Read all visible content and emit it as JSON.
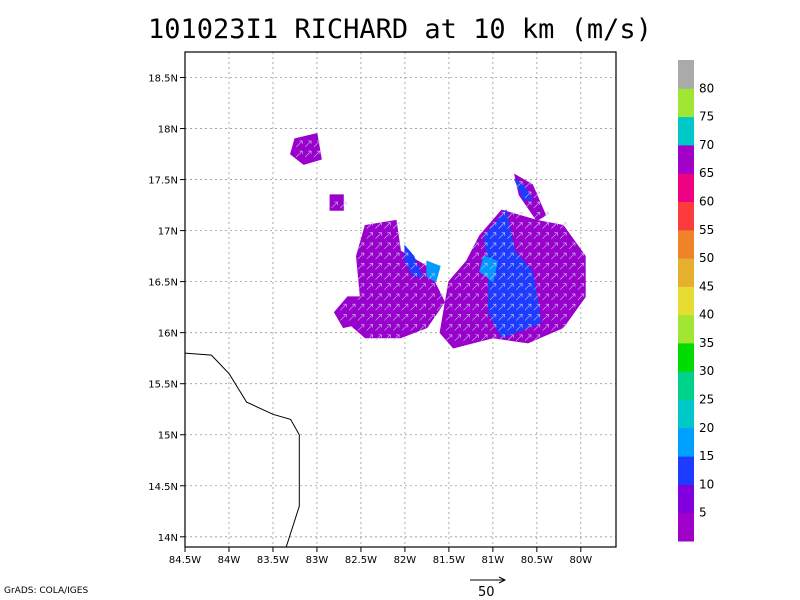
{
  "title": "101023I1 RICHARD at 10 km (m/s)",
  "footer": "GrADS: COLA/IGES",
  "vector_reference": {
    "label": "50"
  },
  "map": {
    "lon_range": [
      -84.5,
      -79.6
    ],
    "lat_range": [
      13.9,
      18.75
    ],
    "lon_ticks": [
      "84.5W",
      "84W",
      "83.5W",
      "83W",
      "82.5W",
      "82W",
      "81.5W",
      "81W",
      "80.5W",
      "80W"
    ],
    "lat_ticks": [
      "18.5N",
      "18N",
      "17.5N",
      "17N",
      "16.5N",
      "16N",
      "15.5N",
      "15N",
      "14.5N",
      "14N"
    ],
    "grid": true,
    "coastline": [
      [
        -84.5,
        15.8
      ],
      [
        -84.2,
        15.78
      ],
      [
        -84.0,
        15.6
      ],
      [
        -83.8,
        15.32
      ],
      [
        -83.5,
        15.2
      ],
      [
        -83.3,
        15.15
      ],
      [
        -83.2,
        15.0
      ],
      [
        -83.2,
        14.3
      ],
      [
        -83.35,
        13.9
      ]
    ],
    "wind_regions": [
      {
        "name": "west-cluster",
        "color": "#9900cc",
        "polygon": [
          [
            -82.45,
            17.05
          ],
          [
            -82.1,
            17.1
          ],
          [
            -82.05,
            16.8
          ],
          [
            -81.75,
            16.65
          ],
          [
            -81.55,
            16.3
          ],
          [
            -81.75,
            16.05
          ],
          [
            -82.05,
            15.95
          ],
          [
            -82.45,
            15.95
          ],
          [
            -82.65,
            16.1
          ],
          [
            -82.5,
            16.3
          ],
          [
            -82.55,
            16.75
          ]
        ]
      },
      {
        "name": "east-cluster",
        "color": "#9900cc",
        "polygon": [
          [
            -81.15,
            16.95
          ],
          [
            -80.9,
            17.2
          ],
          [
            -80.5,
            17.1
          ],
          [
            -80.2,
            17.05
          ],
          [
            -79.95,
            16.75
          ],
          [
            -79.95,
            16.35
          ],
          [
            -80.2,
            16.05
          ],
          [
            -80.6,
            15.9
          ],
          [
            -81.0,
            15.95
          ],
          [
            -81.45,
            15.85
          ],
          [
            -81.6,
            16.0
          ],
          [
            -81.5,
            16.5
          ],
          [
            -81.3,
            16.7
          ]
        ]
      },
      {
        "name": "far-west-patch",
        "color": "#9900cc",
        "polygon": [
          [
            -82.65,
            16.35
          ],
          [
            -82.5,
            16.35
          ],
          [
            -82.45,
            16.1
          ],
          [
            -82.7,
            16.05
          ],
          [
            -82.8,
            16.2
          ]
        ]
      },
      {
        "name": "north-patch",
        "color": "#9900cc",
        "polygon": [
          [
            -83.25,
            17.9
          ],
          [
            -83.0,
            17.95
          ],
          [
            -82.95,
            17.7
          ],
          [
            -83.15,
            17.65
          ],
          [
            -83.3,
            17.75
          ]
        ]
      },
      {
        "name": "mid-patch",
        "color": "#9900cc",
        "polygon": [
          [
            -82.85,
            17.35
          ],
          [
            -82.7,
            17.35
          ],
          [
            -82.7,
            17.2
          ],
          [
            -82.85,
            17.2
          ]
        ]
      },
      {
        "name": "ne-streak",
        "color": "#9900cc",
        "polygon": [
          [
            -80.75,
            17.55
          ],
          [
            -80.55,
            17.45
          ],
          [
            -80.4,
            17.15
          ],
          [
            -80.5,
            17.1
          ],
          [
            -80.7,
            17.35
          ]
        ]
      },
      {
        "name": "east-core-10",
        "color": "#1e3cff",
        "polygon": [
          [
            -81.1,
            16.95
          ],
          [
            -80.85,
            17.2
          ],
          [
            -80.75,
            16.8
          ],
          [
            -80.55,
            16.6
          ],
          [
            -80.45,
            16.1
          ],
          [
            -80.9,
            15.95
          ],
          [
            -81.05,
            16.2
          ],
          [
            -81.05,
            16.6
          ]
        ]
      },
      {
        "name": "ne-streak-10",
        "color": "#1e3cff",
        "polygon": [
          [
            -80.75,
            17.5
          ],
          [
            -80.65,
            17.45
          ],
          [
            -80.55,
            17.3
          ],
          [
            -80.65,
            17.3
          ]
        ]
      },
      {
        "name": "west-core-10",
        "color": "#1e3cff",
        "polygon": [
          [
            -82.0,
            16.85
          ],
          [
            -81.9,
            16.75
          ],
          [
            -81.8,
            16.55
          ],
          [
            -81.9,
            16.55
          ],
          [
            -82.0,
            16.7
          ]
        ]
      },
      {
        "name": "west-core-15",
        "color": "#0099ff",
        "polygon": [
          [
            -81.75,
            16.7
          ],
          [
            -81.6,
            16.65
          ],
          [
            -81.65,
            16.5
          ],
          [
            -81.75,
            16.55
          ]
        ]
      },
      {
        "name": "east-core-15",
        "color": "#0099ff",
        "polygon": [
          [
            -81.1,
            16.75
          ],
          [
            -80.95,
            16.7
          ],
          [
            -81.0,
            16.5
          ],
          [
            -81.15,
            16.6
          ]
        ]
      }
    ]
  },
  "colorbar": {
    "labels": [
      "5",
      "10",
      "15",
      "20",
      "25",
      "30",
      "35",
      "40",
      "45",
      "50",
      "55",
      "60",
      "65",
      "70",
      "75",
      "80"
    ],
    "colors": [
      "#a000c8",
      "#8200dc",
      "#1e3cff",
      "#00a0ff",
      "#00c8c8",
      "#00d28c",
      "#00dc00",
      "#a0e632",
      "#e6dc32",
      "#e6af2d",
      "#f08228",
      "#fa3c3c",
      "#f00082",
      "#a000c8",
      "#00c8c8",
      "#a0e632",
      "#aaaaaa"
    ]
  }
}
